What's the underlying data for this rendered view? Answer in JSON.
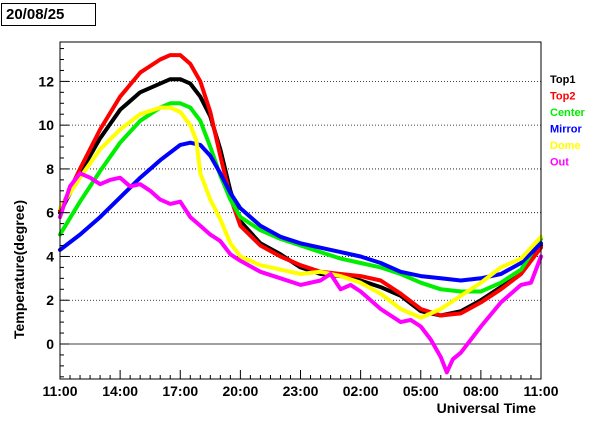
{
  "date_label": "20/08/25",
  "chart_data": {
    "type": "line",
    "title": "",
    "xlabel": "Universal Time",
    "ylabel": "Temperature(degree)",
    "x_ticks": [
      "11:00",
      "14:00",
      "17:00",
      "20:00",
      "23:00",
      "02:00",
      "05:00",
      "08:00",
      "11:00"
    ],
    "x_tick_hours": [
      0,
      3,
      6,
      9,
      12,
      15,
      18,
      21,
      24
    ],
    "xlim": [
      0,
      24
    ],
    "ylim": [
      -1.6,
      13.8
    ],
    "y_ticks": [
      0,
      2,
      4,
      6,
      8,
      10,
      12
    ],
    "grid": "horizontal dotted",
    "legend_position": "right",
    "series": [
      {
        "name": "Top1",
        "color": "#000000",
        "x": [
          0,
          1,
          2,
          3,
          4,
          5,
          5.5,
          6,
          6.5,
          7,
          7.5,
          8,
          8.5,
          9,
          10,
          11,
          12,
          13,
          14,
          15,
          16,
          17,
          18,
          19,
          20,
          21,
          22,
          23,
          24
        ],
        "y": [
          6.0,
          7.8,
          9.4,
          10.7,
          11.5,
          11.9,
          12.1,
          12.1,
          11.9,
          11.3,
          10.4,
          8.9,
          7.0,
          5.6,
          4.6,
          4.1,
          3.5,
          3.2,
          3.1,
          2.9,
          2.6,
          2.2,
          1.5,
          1.3,
          1.5,
          2.0,
          2.6,
          3.3,
          4.5
        ]
      },
      {
        "name": "Top2",
        "color": "#ff0000",
        "x": [
          0,
          1,
          2,
          3,
          4,
          5,
          5.5,
          6,
          6.5,
          7,
          7.5,
          8,
          8.5,
          9,
          10,
          11,
          12,
          13,
          14,
          15,
          16,
          17,
          18,
          19,
          20,
          21,
          22,
          23,
          24
        ],
        "y": [
          6.1,
          8.0,
          9.8,
          11.3,
          12.4,
          13.0,
          13.2,
          13.2,
          12.8,
          12.0,
          10.6,
          8.6,
          6.7,
          5.4,
          4.5,
          4.0,
          3.6,
          3.3,
          3.2,
          3.1,
          2.9,
          2.3,
          1.6,
          1.3,
          1.4,
          1.9,
          2.5,
          3.2,
          4.4
        ]
      },
      {
        "name": "Center",
        "color": "#00ee00",
        "x": [
          0,
          1,
          2,
          3,
          4,
          5,
          5.5,
          6,
          6.5,
          7,
          7.5,
          8,
          8.5,
          9,
          10,
          11,
          12,
          13,
          14,
          15,
          16,
          17,
          18,
          19,
          20,
          21,
          22,
          23,
          24
        ],
        "y": [
          5.0,
          6.5,
          7.9,
          9.2,
          10.2,
          10.8,
          11.0,
          11.0,
          10.8,
          10.2,
          9.0,
          7.7,
          6.6,
          5.8,
          5.2,
          4.8,
          4.5,
          4.2,
          3.9,
          3.7,
          3.5,
          3.2,
          2.8,
          2.5,
          2.4,
          2.4,
          2.8,
          3.4,
          4.8
        ]
      },
      {
        "name": "Mirror",
        "color": "#0000ff",
        "x": [
          0,
          1,
          2,
          3,
          4,
          5,
          6,
          6.5,
          7,
          7.5,
          8,
          8.5,
          9,
          10,
          11,
          12,
          13,
          14,
          15,
          16,
          17,
          18,
          19,
          20,
          21,
          22,
          23,
          24
        ],
        "y": [
          4.3,
          5.0,
          5.8,
          6.7,
          7.6,
          8.4,
          9.1,
          9.2,
          9.1,
          8.6,
          7.8,
          6.9,
          6.2,
          5.4,
          4.9,
          4.6,
          4.4,
          4.2,
          4.0,
          3.7,
          3.3,
          3.1,
          3.0,
          2.9,
          3.0,
          3.2,
          3.7,
          4.6
        ]
      },
      {
        "name": "Dome",
        "color": "#ffff00",
        "x": [
          0,
          1,
          2,
          3,
          4,
          5,
          5.5,
          6,
          6.5,
          6.8,
          7,
          7.5,
          8,
          8.5,
          9,
          10,
          11,
          12,
          13,
          14,
          15,
          16,
          17,
          18,
          19,
          20,
          21,
          22,
          23,
          24
        ],
        "y": [
          6.2,
          7.6,
          8.9,
          9.8,
          10.5,
          10.8,
          10.8,
          10.6,
          10.0,
          9.3,
          7.8,
          6.6,
          5.7,
          4.6,
          4.0,
          3.6,
          3.4,
          3.2,
          3.3,
          3.1,
          2.8,
          2.3,
          1.6,
          1.2,
          1.6,
          2.2,
          2.8,
          3.5,
          3.9,
          4.9
        ]
      },
      {
        "name": "Out",
        "color": "#ff00ff",
        "x": [
          0,
          0.5,
          1,
          1.5,
          2,
          2.5,
          3,
          3.5,
          4,
          4.5,
          5,
          5.5,
          6,
          6.5,
          7,
          7.5,
          8,
          8.5,
          9,
          10,
          11,
          12,
          13,
          13.5,
          14,
          14.5,
          15,
          16,
          17,
          17.5,
          18,
          18.5,
          19,
          19.3,
          19.6,
          20,
          20.5,
          21,
          22,
          23,
          23.5,
          24
        ],
        "y": [
          5.8,
          7.2,
          7.8,
          7.6,
          7.3,
          7.5,
          7.6,
          7.2,
          7.3,
          7.0,
          6.6,
          6.4,
          6.5,
          5.8,
          5.4,
          5.0,
          4.7,
          4.1,
          3.8,
          3.3,
          3.0,
          2.7,
          2.9,
          3.2,
          2.5,
          2.7,
          2.4,
          1.6,
          1.0,
          1.1,
          0.8,
          0.2,
          -0.6,
          -1.3,
          -0.7,
          -0.4,
          0.2,
          0.8,
          1.9,
          2.7,
          2.8,
          4.0
        ]
      }
    ]
  }
}
